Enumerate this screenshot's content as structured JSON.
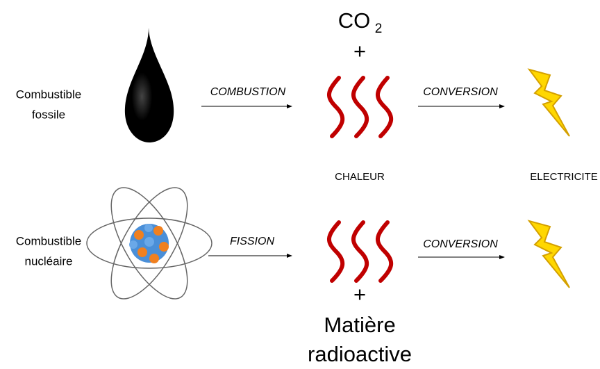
{
  "top": {
    "co2": {
      "base": "CO",
      "sub": "2"
    },
    "plus": "+"
  },
  "row1": {
    "source": [
      "Combustible",
      "fossile"
    ],
    "process": "COMBUSTION",
    "conversion": "CONVERSION"
  },
  "middle": {
    "heat": "CHALEUR",
    "electricity": "ELECTRICITE"
  },
  "row2": {
    "source": [
      "Combustible",
      "nucléaire"
    ],
    "process": "FISSION",
    "conversion": "CONVERSION"
  },
  "bottom": {
    "plus": "+",
    "waste": [
      "Matière",
      "radioactive"
    ]
  }
}
